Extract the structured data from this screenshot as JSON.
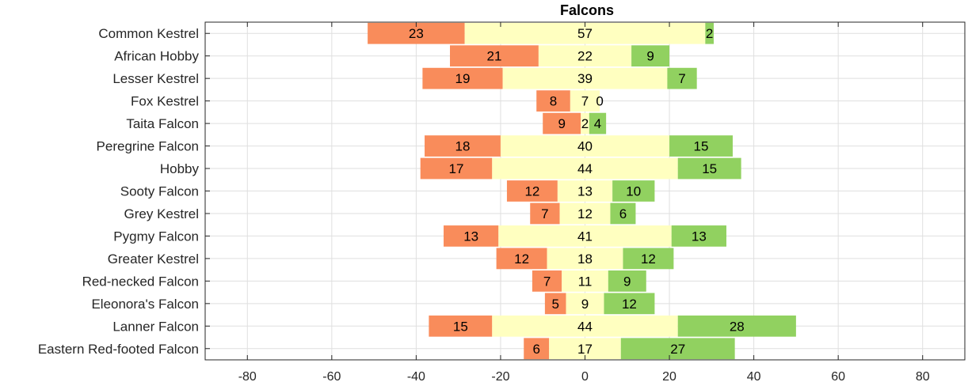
{
  "chart_data": {
    "type": "bar",
    "orientation": "horizontal",
    "stacked": "diverging",
    "title": "Falcons",
    "xlabel": "",
    "ylabel": "",
    "xlim": [
      -90,
      90
    ],
    "xticks": [
      -80,
      -60,
      -40,
      -20,
      0,
      20,
      40,
      60,
      80
    ],
    "grid": true,
    "categories": [
      "Common Kestrel",
      "African Hobby",
      "Lesser Kestrel",
      "Fox Kestrel",
      "Taita Falcon",
      "Peregrine Falcon",
      "Hobby",
      "Sooty Falcon",
      "Grey Kestrel",
      "Pygmy Falcon",
      "Greater Kestrel",
      "Red-necked Falcon",
      "Eleonora's Falcon",
      "Lanner Falcon",
      "Eastern Red-footed Falcon"
    ],
    "series": [
      {
        "color": "#f98c5b",
        "values": [
          23,
          21,
          19,
          8,
          9,
          18,
          17,
          12,
          7,
          13,
          12,
          7,
          5,
          15,
          6
        ]
      },
      {
        "color": "#ffffc0",
        "values": [
          57,
          22,
          39,
          7,
          2,
          40,
          44,
          13,
          12,
          41,
          18,
          11,
          9,
          44,
          17
        ]
      },
      {
        "color": "#91d160",
        "values": [
          2,
          9,
          7,
          0,
          4,
          15,
          15,
          10,
          6,
          13,
          12,
          9,
          12,
          28,
          27
        ]
      }
    ]
  }
}
